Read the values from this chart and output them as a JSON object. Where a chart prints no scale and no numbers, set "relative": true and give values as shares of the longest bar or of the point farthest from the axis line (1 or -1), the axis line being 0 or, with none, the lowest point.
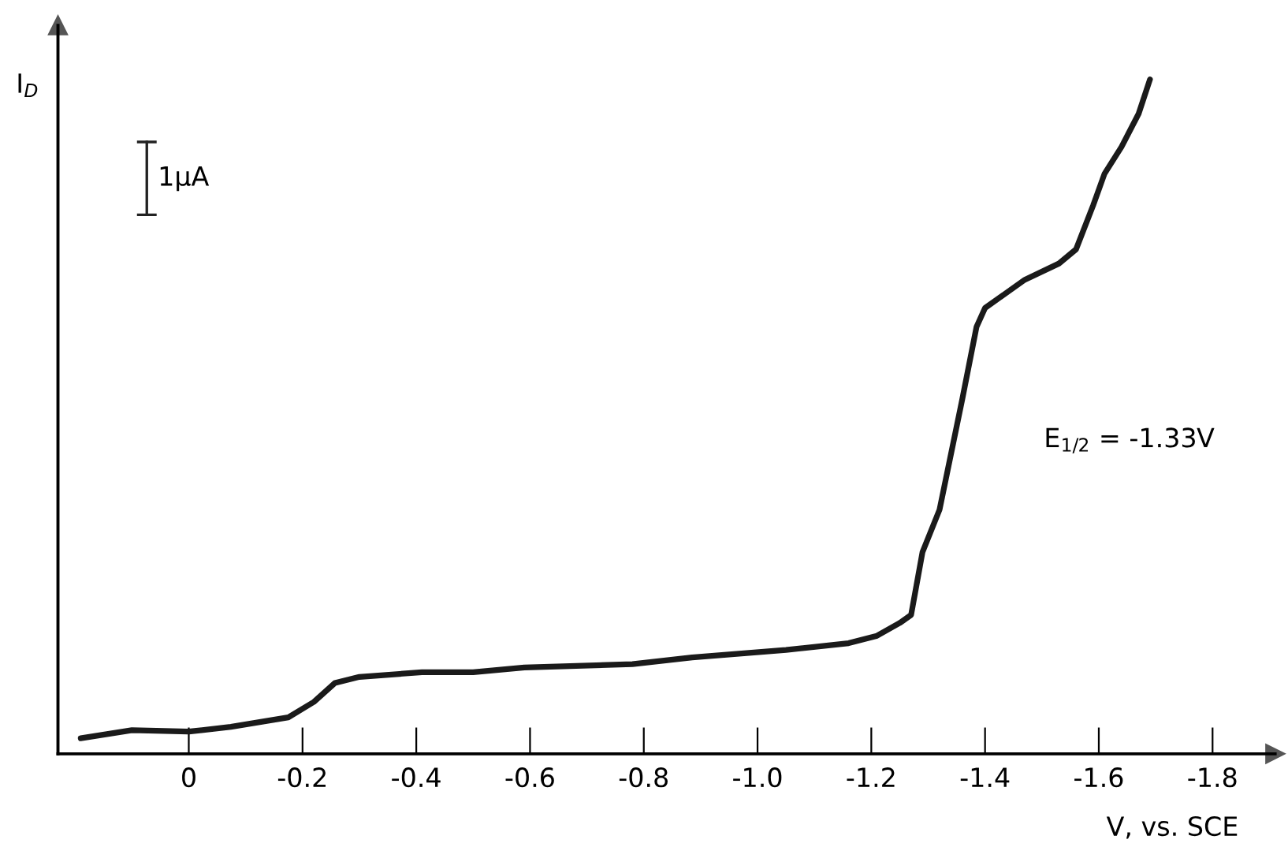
{
  "chart_data": {
    "type": "line",
    "relative": true,
    "xlabel": "V, vs. SCE",
    "ylabel": "I$_{D}$",
    "annotations": [
      "1μA",
      "E$_{1/2}$ = -1.33V"
    ],
    "xlim": [
      0.23,
      -1.91
    ],
    "xticks": [
      0,
      {
        "value": -0.2,
        "label": "-0.2"
      },
      {
        "value": -0.4,
        "label": "-0.4"
      },
      {
        "value": -0.6,
        "label": "-0.6"
      },
      {
        "value": -0.8,
        "label": "-0.8"
      },
      {
        "value": -1.0,
        "label": "-1.0"
      },
      {
        "value": -1.2,
        "label": "-1.2"
      },
      {
        "value": -1.4,
        "label": "-1.4"
      },
      {
        "value": -1.6,
        "label": "-1.6"
      },
      {
        "value": -1.8,
        "label": "-1.8"
      }
    ],
    "x": [
      0.19,
      0.1,
      0,
      -0.074,
      -0.175,
      -0.22,
      -0.257,
      -0.3,
      -0.41,
      -0.5,
      -0.59,
      -0.78,
      -0.885,
      -1.05,
      -1.16,
      -1.21,
      -1.25,
      -1.27,
      -1.29,
      -1.32,
      -1.36,
      -1.385,
      -1.4,
      -1.47,
      -1.53,
      -1.56,
      -1.59,
      -1.61,
      -1.64,
      -1.67,
      -1.69
    ],
    "series": [
      {
        "color": "#1a1a1a",
        "values": [
          0.023,
          0.035,
          0.033,
          0.04,
          0.054,
          0.077,
          0.105,
          0.114,
          0.121,
          0.121,
          0.128,
          0.133,
          0.143,
          0.154,
          0.164,
          0.175,
          0.194,
          0.206,
          0.299,
          0.362,
          0.526,
          0.633,
          0.661,
          0.703,
          0.727,
          0.748,
          0.813,
          0.86,
          0.9,
          0.949,
          1.0
        ]
      }
    ],
    "grid": false,
    "legend": false,
    "marker": "none",
    "line_style": "solid"
  }
}
